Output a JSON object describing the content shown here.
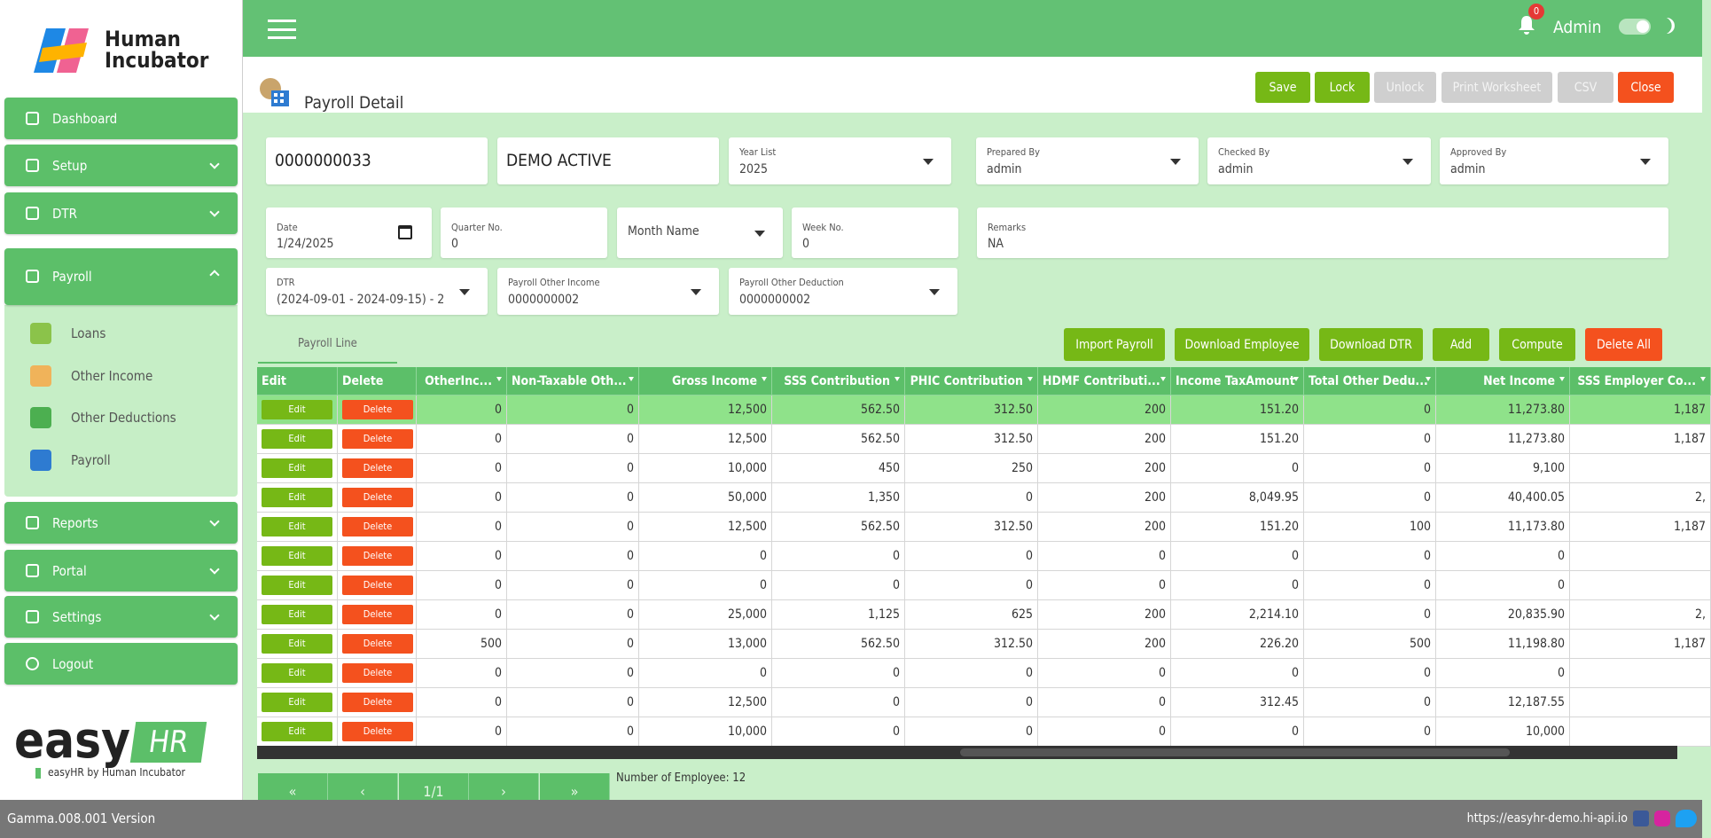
{
  "sidebar": {
    "brand": [
      "Human",
      "Incubator"
    ],
    "menu": [
      "Dashboard",
      "Setup",
      "DTR",
      "Payroll"
    ],
    "submenu": [
      "Loans",
      "Other Income",
      "Other Deductions",
      "Payroll"
    ],
    "menu_after": [
      "Reports",
      "Portal",
      "Settings",
      "Logout"
    ],
    "logo": {
      "easy": "easy",
      "hr": "HR",
      "caption": "easyHR by Human Incubator"
    }
  },
  "topbar": {
    "notifications": "0",
    "user": "Admin"
  },
  "header": {
    "title": "Payroll Detail",
    "buttons": [
      "Save",
      "Lock",
      "Unlock",
      "Print Worksheet",
      "CSV",
      "Close"
    ]
  },
  "form": {
    "code": "0000000033",
    "name": "DEMO ACTIVE",
    "fields": [
      {
        "label": "Year List",
        "value": "2025"
      },
      {
        "label": "Prepared By",
        "value": "admin"
      },
      {
        "label": "Checked By",
        "value": "admin"
      },
      {
        "label": "Approved By",
        "value": "admin"
      },
      {
        "label": "Date",
        "value": "1/24/2025"
      },
      {
        "label": "Quarter No.",
        "value": "0"
      },
      {
        "placeholder": "Month Name"
      },
      {
        "label": "Week No.",
        "value": "0"
      },
      {
        "label": "Remarks",
        "value": "NA"
      },
      {
        "label": "DTR",
        "value": "(2024-09-01 - 2024-09-15) - 2"
      },
      {
        "label": "Payroll Other Income",
        "value": "0000000002"
      },
      {
        "label": "Payroll Other Deduction",
        "value": "0000000002"
      }
    ]
  },
  "tabs": [
    "Payroll Line"
  ],
  "table": {
    "actions": [
      "Import Payroll",
      "Download Employee",
      "Download DTR",
      "Add",
      "Compute",
      "Delete All"
    ],
    "columns": [
      "Edit",
      "Delete",
      "OtherInc...",
      "Non-Taxable Oth...",
      "Gross Income",
      "SSS Contribution",
      "PHIC Contribution",
      "HDMF Contributi...",
      "Income TaxAmount",
      "Total Other Dedu...",
      "Net Income",
      "SSS Employer Co..."
    ],
    "row_actions": {
      "edit": "Edit",
      "delete": "Delete"
    },
    "rows": [
      [
        "0",
        "0",
        "12,500",
        "562.50",
        "312.50",
        "200",
        "151.20",
        "0",
        "11,273.80",
        "1,187"
      ],
      [
        "0",
        "0",
        "12,500",
        "562.50",
        "312.50",
        "200",
        "151.20",
        "0",
        "11,273.80",
        "1,187"
      ],
      [
        "0",
        "0",
        "10,000",
        "450",
        "250",
        "200",
        "0",
        "0",
        "9,100"
      ],
      [
        "0",
        "0",
        "50,000",
        "1,350",
        "0",
        "200",
        "8,049.95",
        "0",
        "40,400.05",
        "2,"
      ],
      [
        "0",
        "0",
        "12,500",
        "562.50",
        "312.50",
        "200",
        "151.20",
        "100",
        "11,173.80",
        "1,187"
      ],
      [
        "0",
        "0",
        "0",
        "0",
        "0",
        "0",
        "0",
        "0",
        "0"
      ],
      [
        "0",
        "0",
        "0",
        "0",
        "0",
        "0",
        "0",
        "0",
        "0"
      ],
      [
        "0",
        "0",
        "25,000",
        "1,125",
        "625",
        "200",
        "2,214.10",
        "0",
        "20,835.90",
        "2,"
      ],
      [
        "500",
        "0",
        "13,000",
        "562.50",
        "312.50",
        "200",
        "226.20",
        "500",
        "11,198.80",
        "1,187"
      ],
      [
        "0",
        "0",
        "0",
        "0",
        "0",
        "0",
        "0",
        "0",
        "0"
      ],
      [
        "0",
        "0",
        "12,500",
        "0",
        "0",
        "0",
        "312.45",
        "0",
        "12,187.55"
      ],
      [
        "0",
        "0",
        "10,000",
        "0",
        "0",
        "0",
        "0",
        "0",
        "10,000"
      ]
    ]
  },
  "pagination": {
    "buttons": [
      "«",
      "‹",
      "1/1",
      "›",
      "»"
    ],
    "count": "Number of Employee: 12"
  },
  "footer": {
    "version": "Gamma.008.001 Version",
    "url": "https://easyhr-demo.hi-api.io"
  }
}
